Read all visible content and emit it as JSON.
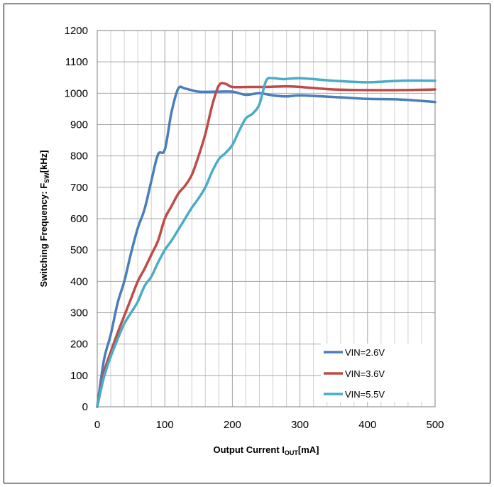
{
  "chart_data": {
    "type": "line",
    "title": "",
    "xlabel": {
      "prefix": "Output Current I",
      "sub": "OUT",
      "suffix": "[mA]"
    },
    "ylabel": {
      "prefix": "Switching Frequency: F",
      "sub": "SW",
      "suffix": "[kHz]"
    },
    "xlim": [
      0,
      500
    ],
    "ylim": [
      0,
      1200
    ],
    "xticks": [
      "0",
      "100",
      "200",
      "300",
      "400",
      "500"
    ],
    "yticks": [
      "0",
      "100",
      "200",
      "300",
      "400",
      "500",
      "600",
      "700",
      "800",
      "900",
      "1000",
      "1100",
      "1200"
    ],
    "grid": true,
    "legend_position": "bottom-right",
    "series": [
      {
        "name": "VIN=2.6V",
        "color": "#4a7ebb",
        "points": [
          [
            0,
            0
          ],
          [
            10,
            150
          ],
          [
            20,
            230
          ],
          [
            30,
            330
          ],
          [
            40,
            400
          ],
          [
            50,
            490
          ],
          [
            60,
            570
          ],
          [
            70,
            630
          ],
          [
            80,
            720
          ],
          [
            90,
            805
          ],
          [
            100,
            820
          ],
          [
            110,
            940
          ],
          [
            120,
            1015
          ],
          [
            130,
            1015
          ],
          [
            150,
            1005
          ],
          [
            175,
            1005
          ],
          [
            200,
            1005
          ],
          [
            220,
            995
          ],
          [
            240,
            1000
          ],
          [
            260,
            993
          ],
          [
            280,
            990
          ],
          [
            300,
            993
          ],
          [
            350,
            988
          ],
          [
            400,
            982
          ],
          [
            450,
            980
          ],
          [
            500,
            972
          ]
        ]
      },
      {
        "name": "VIN=3.6V",
        "color": "#be4b48",
        "points": [
          [
            0,
            0
          ],
          [
            10,
            110
          ],
          [
            20,
            175
          ],
          [
            30,
            235
          ],
          [
            40,
            290
          ],
          [
            50,
            345
          ],
          [
            60,
            400
          ],
          [
            70,
            440
          ],
          [
            80,
            485
          ],
          [
            90,
            530
          ],
          [
            100,
            600
          ],
          [
            110,
            640
          ],
          [
            120,
            680
          ],
          [
            130,
            705
          ],
          [
            140,
            740
          ],
          [
            150,
            800
          ],
          [
            160,
            870
          ],
          [
            170,
            960
          ],
          [
            180,
            1025
          ],
          [
            190,
            1030
          ],
          [
            200,
            1020
          ],
          [
            225,
            1020
          ],
          [
            250,
            1020
          ],
          [
            280,
            1022
          ],
          [
            300,
            1020
          ],
          [
            350,
            1012
          ],
          [
            400,
            1010
          ],
          [
            450,
            1010
          ],
          [
            500,
            1012
          ]
        ]
      },
      {
        "name": "VIN=5.5V",
        "color": "#4bacc6",
        "points": [
          [
            0,
            0
          ],
          [
            10,
            95
          ],
          [
            20,
            160
          ],
          [
            30,
            215
          ],
          [
            40,
            265
          ],
          [
            50,
            300
          ],
          [
            60,
            335
          ],
          [
            70,
            385
          ],
          [
            80,
            415
          ],
          [
            90,
            460
          ],
          [
            100,
            500
          ],
          [
            110,
            530
          ],
          [
            120,
            565
          ],
          [
            130,
            600
          ],
          [
            140,
            635
          ],
          [
            150,
            665
          ],
          [
            160,
            700
          ],
          [
            170,
            750
          ],
          [
            180,
            790
          ],
          [
            190,
            810
          ],
          [
            200,
            835
          ],
          [
            210,
            880
          ],
          [
            220,
            920
          ],
          [
            230,
            935
          ],
          [
            240,
            965
          ],
          [
            250,
            1040
          ],
          [
            260,
            1048
          ],
          [
            275,
            1045
          ],
          [
            300,
            1048
          ],
          [
            350,
            1040
          ],
          [
            400,
            1035
          ],
          [
            450,
            1040
          ],
          [
            500,
            1040
          ]
        ]
      }
    ]
  }
}
